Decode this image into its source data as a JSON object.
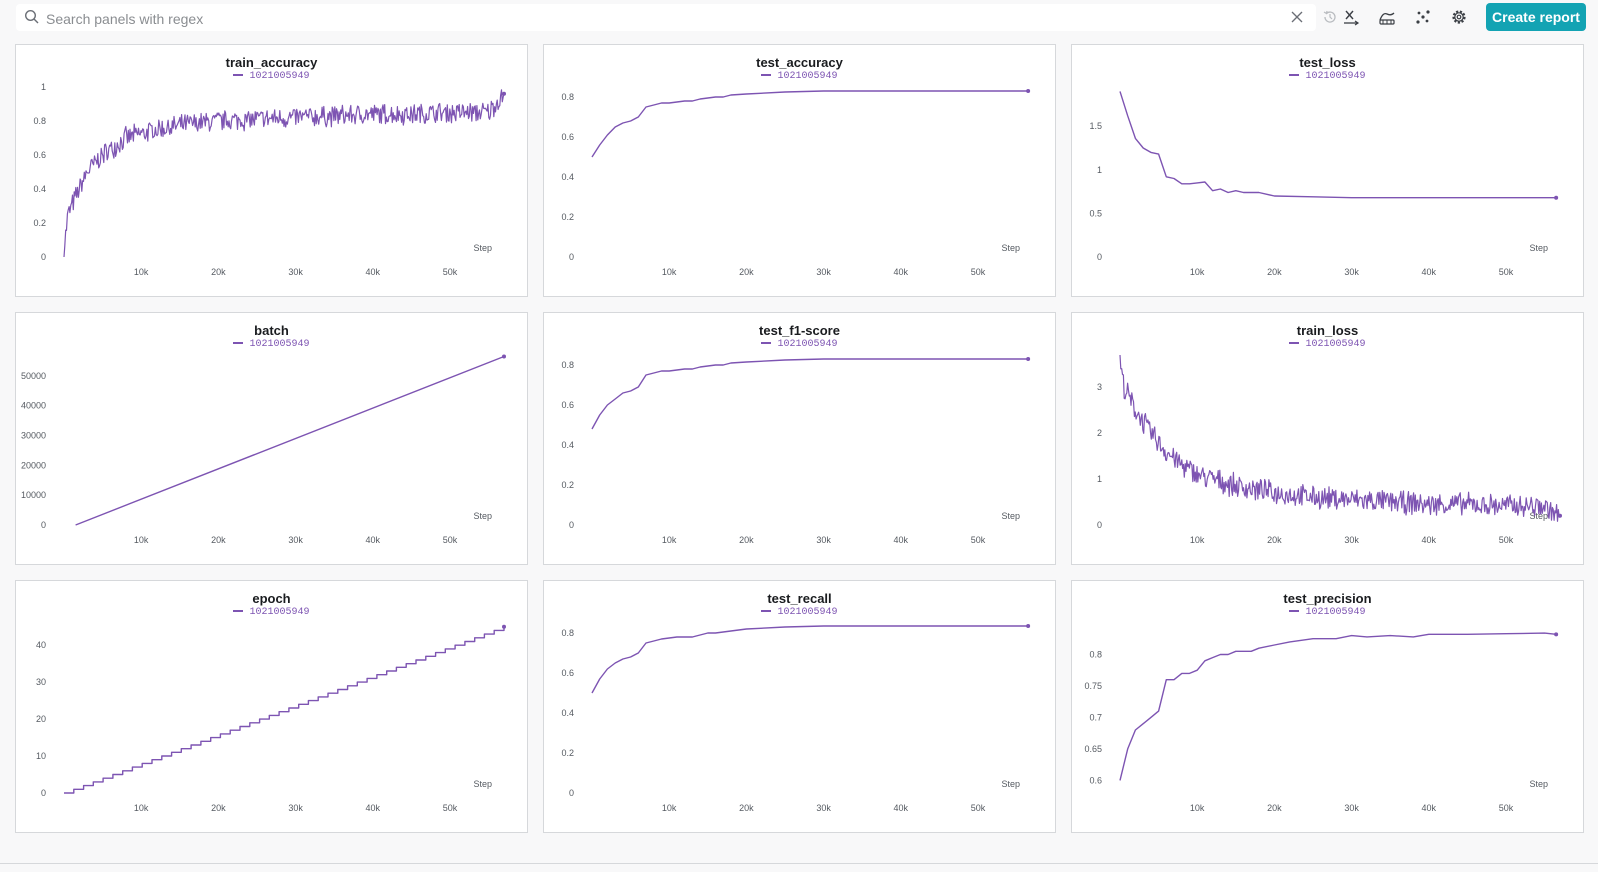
{
  "search": {
    "placeholder": "Search panels with regex",
    "value": ""
  },
  "toolbar": {
    "create_report_label": "Create report",
    "icons": [
      "search-icon",
      "clear-icon",
      "history-icon",
      "x-axis-icon",
      "smoothing-icon",
      "outliers-icon",
      "settings-icon"
    ]
  },
  "colors": {
    "accent": "#13a3b3",
    "series": "#7d54b2"
  },
  "panels": [
    {
      "title": "train_accuracy",
      "legend": "1021005949"
    },
    {
      "title": "test_accuracy",
      "legend": "1021005949"
    },
    {
      "title": "test_loss",
      "legend": "1021005949"
    },
    {
      "title": "batch",
      "legend": "1021005949"
    },
    {
      "title": "test_f1-score",
      "legend": "1021005949"
    },
    {
      "title": "train_loss",
      "legend": "1021005949"
    },
    {
      "title": "epoch",
      "legend": "1021005949"
    },
    {
      "title": "test_recall",
      "legend": "1021005949"
    },
    {
      "title": "test_precision",
      "legend": "1021005949"
    }
  ],
  "chart_data": [
    {
      "type": "line",
      "title": "train_accuracy",
      "xlabel": "Step",
      "xlim": [
        0,
        57000
      ],
      "ylim": [
        0,
        1
      ],
      "xticks": [
        10000,
        20000,
        30000,
        40000,
        50000
      ],
      "xticklabels": [
        "10k",
        "20k",
        "30k",
        "40k",
        "50k"
      ],
      "yticks": [
        0,
        0.2,
        0.4,
        0.6,
        0.8,
        1
      ],
      "yticklabels": [
        "0",
        "0.2",
        "0.4",
        "0.6",
        "0.8",
        "1"
      ],
      "series": [
        {
          "name": "1021005949",
          "noisy": true,
          "x": [
            0,
            500,
            1500,
            3000,
            5000,
            8000,
            12000,
            16000,
            20000,
            25000,
            30000,
            35000,
            40000,
            45000,
            50000,
            55000,
            57000
          ],
          "y": [
            0.04,
            0.25,
            0.35,
            0.5,
            0.6,
            0.7,
            0.75,
            0.78,
            0.8,
            0.81,
            0.82,
            0.83,
            0.84,
            0.84,
            0.85,
            0.85,
            0.96
          ],
          "noise": 0.07
        }
      ]
    },
    {
      "type": "line",
      "title": "test_accuracy",
      "xlabel": "Step",
      "xlim": [
        0,
        57000
      ],
      "ylim": [
        0,
        0.85
      ],
      "xticks": [
        10000,
        20000,
        30000,
        40000,
        50000
      ],
      "xticklabels": [
        "10k",
        "20k",
        "30k",
        "40k",
        "50k"
      ],
      "yticks": [
        0,
        0.2,
        0.4,
        0.6,
        0.8
      ],
      "yticklabels": [
        "0",
        "0.2",
        "0.4",
        "0.6",
        "0.8"
      ],
      "series": [
        {
          "name": "1021005949",
          "x": [
            0,
            1000,
            2000,
            3000,
            4000,
            5000,
            6000,
            7000,
            8000,
            9000,
            10000,
            11000,
            12000,
            13000,
            14000,
            15000,
            16000,
            17000,
            18000,
            20000,
            25000,
            30000,
            35000,
            40000,
            45000,
            50000,
            55000,
            56500
          ],
          "y": [
            0.5,
            0.56,
            0.61,
            0.65,
            0.67,
            0.68,
            0.7,
            0.75,
            0.76,
            0.77,
            0.77,
            0.775,
            0.78,
            0.78,
            0.79,
            0.795,
            0.8,
            0.8,
            0.81,
            0.815,
            0.825,
            0.83,
            0.83,
            0.83,
            0.83,
            0.83,
            0.83,
            0.83
          ]
        }
      ]
    },
    {
      "type": "line",
      "title": "test_loss",
      "xlabel": "Step",
      "xlim": [
        0,
        57000
      ],
      "ylim": [
        0,
        1.95
      ],
      "xticks": [
        10000,
        20000,
        30000,
        40000,
        50000
      ],
      "xticklabels": [
        "10k",
        "20k",
        "30k",
        "40k",
        "50k"
      ],
      "yticks": [
        0,
        0.5,
        1,
        1.5
      ],
      "yticklabels": [
        "0",
        "0.5",
        "1",
        "1.5"
      ],
      "series": [
        {
          "name": "1021005949",
          "x": [
            0,
            1000,
            2000,
            3000,
            4000,
            5000,
            6000,
            7000,
            8000,
            9000,
            10000,
            11000,
            12000,
            13000,
            14000,
            15000,
            16000,
            18000,
            20000,
            25000,
            30000,
            35000,
            40000,
            45000,
            50000,
            55000,
            56500
          ],
          "y": [
            1.9,
            1.62,
            1.36,
            1.25,
            1.2,
            1.18,
            0.92,
            0.9,
            0.84,
            0.84,
            0.85,
            0.86,
            0.76,
            0.78,
            0.74,
            0.76,
            0.74,
            0.74,
            0.7,
            0.69,
            0.68,
            0.68,
            0.68,
            0.68,
            0.68,
            0.68,
            0.68
          ]
        }
      ]
    },
    {
      "type": "line",
      "title": "batch",
      "xlabel": "Step",
      "xlim": [
        0,
        57000
      ],
      "ylim": [
        0,
        57000
      ],
      "xticks": [
        10000,
        20000,
        30000,
        40000,
        50000
      ],
      "xticklabels": [
        "10k",
        "20k",
        "30k",
        "40k",
        "50k"
      ],
      "yticks": [
        0,
        10000,
        20000,
        30000,
        40000,
        50000
      ],
      "yticklabels": [
        "0",
        "10000",
        "20000",
        "30000",
        "40000",
        "50000"
      ],
      "series": [
        {
          "name": "1021005949",
          "x": [
            1500,
            57000
          ],
          "y": [
            0,
            56500
          ]
        }
      ]
    },
    {
      "type": "line",
      "title": "test_f1-score",
      "xlabel": "Step",
      "xlim": [
        0,
        57000
      ],
      "ylim": [
        0,
        0.85
      ],
      "xticks": [
        10000,
        20000,
        30000,
        40000,
        50000
      ],
      "xticklabels": [
        "10k",
        "20k",
        "30k",
        "40k",
        "50k"
      ],
      "yticks": [
        0,
        0.2,
        0.4,
        0.6,
        0.8
      ],
      "yticklabels": [
        "0",
        "0.2",
        "0.4",
        "0.6",
        "0.8"
      ],
      "series": [
        {
          "name": "1021005949",
          "x": [
            0,
            1000,
            2000,
            3000,
            4000,
            5000,
            6000,
            7000,
            8000,
            9000,
            10000,
            11000,
            12000,
            13000,
            14000,
            15000,
            16000,
            17000,
            18000,
            20000,
            25000,
            30000,
            35000,
            40000,
            45000,
            50000,
            55000,
            56500
          ],
          "y": [
            0.48,
            0.55,
            0.6,
            0.63,
            0.66,
            0.67,
            0.69,
            0.75,
            0.76,
            0.77,
            0.77,
            0.775,
            0.78,
            0.78,
            0.79,
            0.795,
            0.8,
            0.8,
            0.81,
            0.815,
            0.825,
            0.83,
            0.83,
            0.83,
            0.83,
            0.83,
            0.83,
            0.83
          ]
        }
      ]
    },
    {
      "type": "line",
      "title": "train_loss",
      "xlabel": "Step",
      "xlim": [
        0,
        57000
      ],
      "ylim": [
        0,
        3.7
      ],
      "xticks": [
        10000,
        20000,
        30000,
        40000,
        50000
      ],
      "xticklabels": [
        "10k",
        "20k",
        "30k",
        "40k",
        "50k"
      ],
      "yticks": [
        0,
        1,
        2,
        3
      ],
      "yticklabels": [
        "0",
        "1",
        "2",
        "3"
      ],
      "series": [
        {
          "name": "1021005949",
          "noisy": true,
          "x": [
            0,
            500,
            2000,
            4000,
            6000,
            8000,
            10000,
            15000,
            20000,
            25000,
            30000,
            35000,
            40000,
            45000,
            50000,
            55000,
            57000
          ],
          "y": [
            3.6,
            3.0,
            2.5,
            2.0,
            1.6,
            1.3,
            1.1,
            0.85,
            0.7,
            0.6,
            0.55,
            0.5,
            0.45,
            0.45,
            0.42,
            0.4,
            0.2
          ],
          "noise": 0.28
        }
      ]
    },
    {
      "type": "line",
      "title": "epoch",
      "xlabel": "Step",
      "xlim": [
        0,
        57000
      ],
      "ylim": [
        0,
        46
      ],
      "xticks": [
        10000,
        20000,
        30000,
        40000,
        50000
      ],
      "xticklabels": [
        "10k",
        "20k",
        "30k",
        "40k",
        "50k"
      ],
      "yticks": [
        0,
        10,
        20,
        30,
        40
      ],
      "yticklabels": [
        "0",
        "10",
        "20",
        "30",
        "40"
      ],
      "series": [
        {
          "name": "1021005949",
          "step": true,
          "x": [
            0,
            57000
          ],
          "y": [
            0,
            45
          ]
        }
      ]
    },
    {
      "type": "line",
      "title": "test_recall",
      "xlabel": "Step",
      "xlim": [
        0,
        57000
      ],
      "ylim": [
        0,
        0.85
      ],
      "xticks": [
        10000,
        20000,
        30000,
        40000,
        50000
      ],
      "xticklabels": [
        "10k",
        "20k",
        "30k",
        "40k",
        "50k"
      ],
      "yticks": [
        0,
        0.2,
        0.4,
        0.6,
        0.8
      ],
      "yticklabels": [
        "0",
        "0.2",
        "0.4",
        "0.6",
        "0.8"
      ],
      "series": [
        {
          "name": "1021005949",
          "x": [
            0,
            1000,
            2000,
            3000,
            4000,
            5000,
            6000,
            7000,
            8000,
            9000,
            10000,
            11000,
            12000,
            13000,
            14000,
            15000,
            16000,
            17000,
            18000,
            20000,
            25000,
            30000,
            35000,
            40000,
            45000,
            50000,
            55000,
            56500
          ],
          "y": [
            0.5,
            0.57,
            0.62,
            0.65,
            0.67,
            0.68,
            0.7,
            0.75,
            0.76,
            0.77,
            0.775,
            0.78,
            0.78,
            0.78,
            0.79,
            0.8,
            0.8,
            0.805,
            0.81,
            0.82,
            0.83,
            0.835,
            0.835,
            0.835,
            0.835,
            0.835,
            0.835,
            0.835
          ]
        }
      ]
    },
    {
      "type": "line",
      "title": "test_precision",
      "xlabel": "Step",
      "xlim": [
        0,
        57000
      ],
      "ylim": [
        0.58,
        0.85
      ],
      "xticks": [
        10000,
        20000,
        30000,
        40000,
        50000
      ],
      "xticklabels": [
        "10k",
        "20k",
        "30k",
        "40k",
        "50k"
      ],
      "yticks": [
        0.6,
        0.65,
        0.7,
        0.75,
        0.8
      ],
      "yticklabels": [
        "0.6",
        "0.65",
        "0.7",
        "0.75",
        "0.8"
      ],
      "series": [
        {
          "name": "1021005949",
          "x": [
            0,
            1000,
            2000,
            3000,
            4000,
            5000,
            6000,
            7000,
            8000,
            9000,
            10000,
            11000,
            12000,
            13000,
            14000,
            15000,
            16000,
            17000,
            18000,
            20000,
            22000,
            25000,
            28000,
            30000,
            32000,
            35000,
            38000,
            40000,
            45000,
            50000,
            55000,
            56500
          ],
          "y": [
            0.6,
            0.65,
            0.68,
            0.69,
            0.7,
            0.71,
            0.76,
            0.76,
            0.77,
            0.77,
            0.775,
            0.79,
            0.795,
            0.8,
            0.8,
            0.805,
            0.805,
            0.805,
            0.81,
            0.815,
            0.82,
            0.825,
            0.825,
            0.83,
            0.828,
            0.83,
            0.828,
            0.832,
            0.832,
            0.833,
            0.834,
            0.832
          ]
        }
      ]
    }
  ]
}
